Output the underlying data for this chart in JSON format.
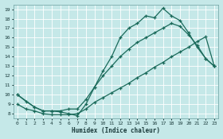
{
  "xlabel": "Humidex (Indice chaleur)",
  "bg_color": "#c5e8e8",
  "grid_color": "#d8eaea",
  "line_color": "#1a6a5a",
  "xlim": [
    -0.5,
    23.5
  ],
  "ylim": [
    7.5,
    19.5
  ],
  "xticks": [
    0,
    1,
    2,
    3,
    4,
    5,
    6,
    7,
    8,
    9,
    10,
    11,
    12,
    13,
    14,
    15,
    16,
    17,
    18,
    19,
    20,
    21,
    22,
    23
  ],
  "yticks": [
    8,
    9,
    10,
    11,
    12,
    13,
    14,
    15,
    16,
    17,
    18,
    19
  ],
  "line1_x": [
    0,
    1,
    2,
    3,
    4,
    5,
    6,
    7,
    8,
    9,
    10,
    11,
    12,
    13,
    14,
    15,
    16,
    17,
    18,
    19,
    20,
    21,
    22,
    23
  ],
  "line1_y": [
    10.0,
    9.3,
    8.7,
    8.3,
    8.3,
    8.2,
    8.0,
    7.8,
    9.0,
    10.8,
    12.5,
    14.0,
    16.0,
    17.0,
    17.5,
    18.3,
    18.1,
    19.1,
    18.3,
    17.8,
    16.5,
    15.0,
    13.8,
    13.0
  ],
  "line2_x": [
    0,
    2,
    3,
    4,
    5,
    6,
    7,
    8,
    9,
    10,
    11,
    12,
    13,
    14,
    15,
    16,
    17,
    18,
    19,
    20,
    21,
    22,
    23
  ],
  "line2_y": [
    10.0,
    8.7,
    8.3,
    8.3,
    8.3,
    8.5,
    8.5,
    9.5,
    10.8,
    12.0,
    13.0,
    14.0,
    14.8,
    15.5,
    16.0,
    16.5,
    17.0,
    17.5,
    17.2,
    16.3,
    15.2,
    13.8,
    13.0
  ],
  "line3_x": [
    0,
    1,
    2,
    3,
    4,
    5,
    6,
    7,
    8,
    9,
    10,
    11,
    12,
    13,
    14,
    15,
    16,
    17,
    18,
    19,
    20,
    21,
    22,
    23
  ],
  "line3_y": [
    9.0,
    8.5,
    8.3,
    8.0,
    7.9,
    7.9,
    7.9,
    8.0,
    8.5,
    9.2,
    9.7,
    10.2,
    10.7,
    11.2,
    11.8,
    12.3,
    12.9,
    13.4,
    14.0,
    14.5,
    15.0,
    15.6,
    16.1,
    13.0
  ]
}
